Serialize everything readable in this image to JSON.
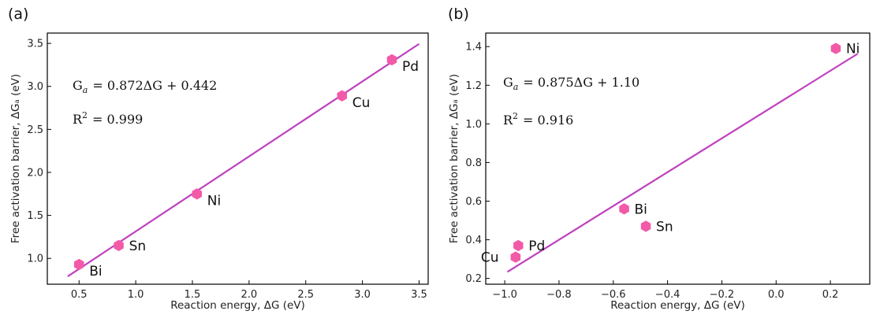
{
  "chart_data": [
    {
      "panel": "(a)",
      "type": "scatter",
      "xlabel": "Reaction energy, ΔG (eV)",
      "ylabel": "Free activation barrier, ΔGₐ (eV)",
      "xlim": [
        0.22,
        3.58
      ],
      "ylim": [
        0.7,
        3.62
      ],
      "xticks": [
        0.5,
        1.0,
        1.5,
        2.0,
        2.5,
        3.0,
        3.5
      ],
      "xtick_labels": [
        "0.5",
        "1.0",
        "1.5",
        "2.0",
        "2.5",
        "3.0",
        "3.5"
      ],
      "yticks": [
        1.0,
        1.5,
        2.0,
        2.5,
        3.0,
        3.5
      ],
      "ytick_labels": [
        "1.0",
        "1.5",
        "2.0",
        "2.5",
        "3.0",
        "3.5"
      ],
      "points": [
        {
          "label": "Bi",
          "x": 0.5,
          "y": 0.93,
          "label_pos": "below-right"
        },
        {
          "label": "Sn",
          "x": 0.85,
          "y": 1.15,
          "label_pos": "right"
        },
        {
          "label": "Ni",
          "x": 1.54,
          "y": 1.75,
          "label_pos": "below-right"
        },
        {
          "label": "Cu",
          "x": 2.82,
          "y": 2.89,
          "label_pos": "below-right"
        },
        {
          "label": "Pd",
          "x": 3.26,
          "y": 3.31,
          "label_pos": "below-right"
        }
      ],
      "fit_line": {
        "slope": 0.872,
        "intercept": 0.442,
        "x_range": [
          0.4,
          3.5
        ]
      },
      "equation": "Ga = 0.872ΔG + 0.442",
      "equation_parts": {
        "lhs": "G",
        "sub": "a",
        "rhs": "= 0.872ΔG + 0.442"
      },
      "r2_text": "R² = 0.999",
      "r2_parts": {
        "lhs": "R",
        "sup": "2",
        "rhs": "= 0.999"
      }
    },
    {
      "panel": "(b)",
      "type": "scatter",
      "xlabel": "Reaction energy, ΔG (eV)",
      "ylabel": "Free activation barrier, ΔGₐ (eV)",
      "xlim": [
        -1.07,
        0.345
      ],
      "ylim": [
        0.17,
        1.47
      ],
      "xticks": [
        -1.0,
        -0.8,
        -0.6,
        -0.4,
        -0.2,
        0.0,
        0.2
      ],
      "xtick_labels": [
        "−1.0",
        "−0.8",
        "−0.6",
        "−0.4",
        "−0.2",
        "0.0",
        "0.2"
      ],
      "yticks": [
        0.2,
        0.4,
        0.6,
        0.8,
        1.0,
        1.2,
        1.4
      ],
      "ytick_labels": [
        "0.2",
        "0.4",
        "0.6",
        "0.8",
        "1.0",
        "1.2",
        "1.4"
      ],
      "points": [
        {
          "label": "Cu",
          "x": -0.96,
          "y": 0.31,
          "label_pos": "left"
        },
        {
          "label": "Pd",
          "x": -0.95,
          "y": 0.37,
          "label_pos": "right"
        },
        {
          "label": "Bi",
          "x": -0.56,
          "y": 0.56,
          "label_pos": "right"
        },
        {
          "label": "Sn",
          "x": -0.48,
          "y": 0.47,
          "label_pos": "right"
        },
        {
          "label": "Ni",
          "x": 0.22,
          "y": 1.39,
          "label_pos": "right"
        }
      ],
      "fit_line": {
        "slope": 0.875,
        "intercept": 1.1,
        "x_range": [
          -0.99,
          0.3
        ]
      },
      "equation": "Ga = 0.875ΔG + 1.10",
      "equation_parts": {
        "lhs": "G",
        "sub": "a",
        "rhs": "= 0.875ΔG + 1.10"
      },
      "r2_text": "R² = 0.916",
      "r2_parts": {
        "lhs": "R",
        "sup": "2",
        "rhs": "= 0.916"
      }
    }
  ],
  "style": {
    "marker_color": "#f25aa8",
    "line_color": "#bf40bf",
    "axis_color": "#000000"
  }
}
